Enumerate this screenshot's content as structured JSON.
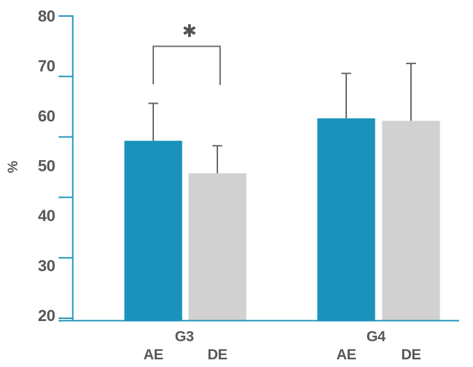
{
  "chart_data": {
    "type": "bar",
    "ylabel": "%",
    "ylim": [
      20,
      80
    ],
    "yticks": [
      80,
      70,
      60,
      50,
      40,
      30,
      20
    ],
    "grid": false,
    "legend": "none",
    "categories": [
      "G3",
      "G4"
    ],
    "bar_labels": [
      "AE",
      "DE"
    ],
    "series": [
      {
        "name": "AE",
        "color": "#1b92bc",
        "values": [
          55,
          59.5
        ],
        "error_up": [
          7.5,
          9
        ]
      },
      {
        "name": "DE",
        "color": "#d1d1d1",
        "values": [
          48.5,
          59
        ],
        "error_up": [
          5.5,
          11.5
        ]
      }
    ],
    "significance": {
      "symbol": "✱",
      "group": "G3",
      "between": [
        "AE",
        "DE"
      ]
    },
    "colors": {
      "axis": "#1b92bc",
      "text": "#58585a",
      "error_bar": "#636466",
      "bracket": "#6b6c6e",
      "asterisk": "#515254"
    }
  }
}
